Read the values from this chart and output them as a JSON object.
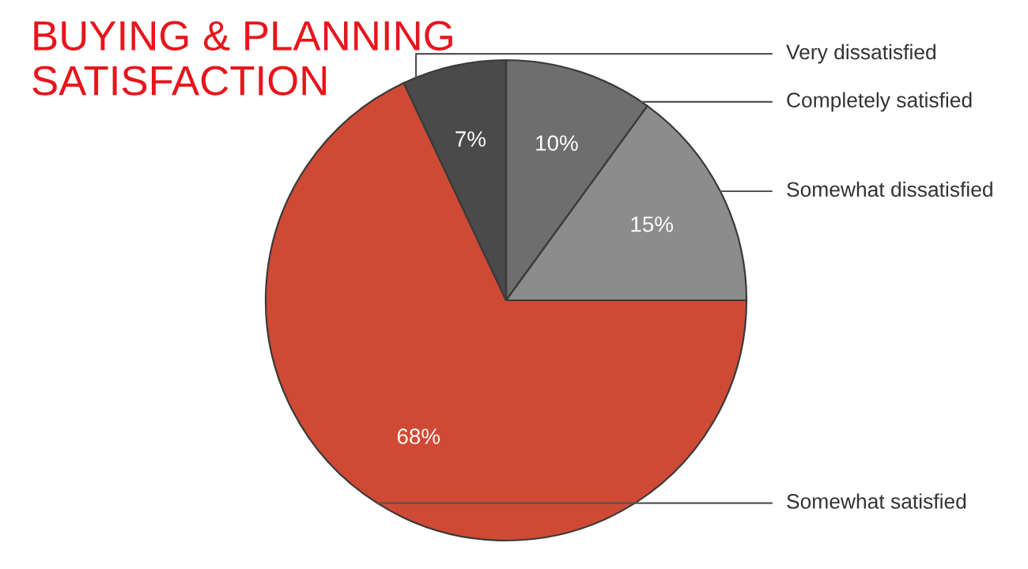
{
  "chart_data": {
    "type": "pie",
    "title": "BUYING & PLANNING\nSATISFACTION",
    "categories": [
      "Completely satisfied",
      "Somewhat dissatisfied",
      "Somewhat satisfied",
      "Very dissatisfied"
    ],
    "values": [
      10,
      15,
      68,
      7
    ],
    "value_labels": [
      "10%",
      "15%",
      "68%",
      "7%"
    ],
    "colors": [
      "#6e6e6e",
      "#8c8c8c",
      "#cf4a34",
      "#4a4a4a"
    ]
  }
}
